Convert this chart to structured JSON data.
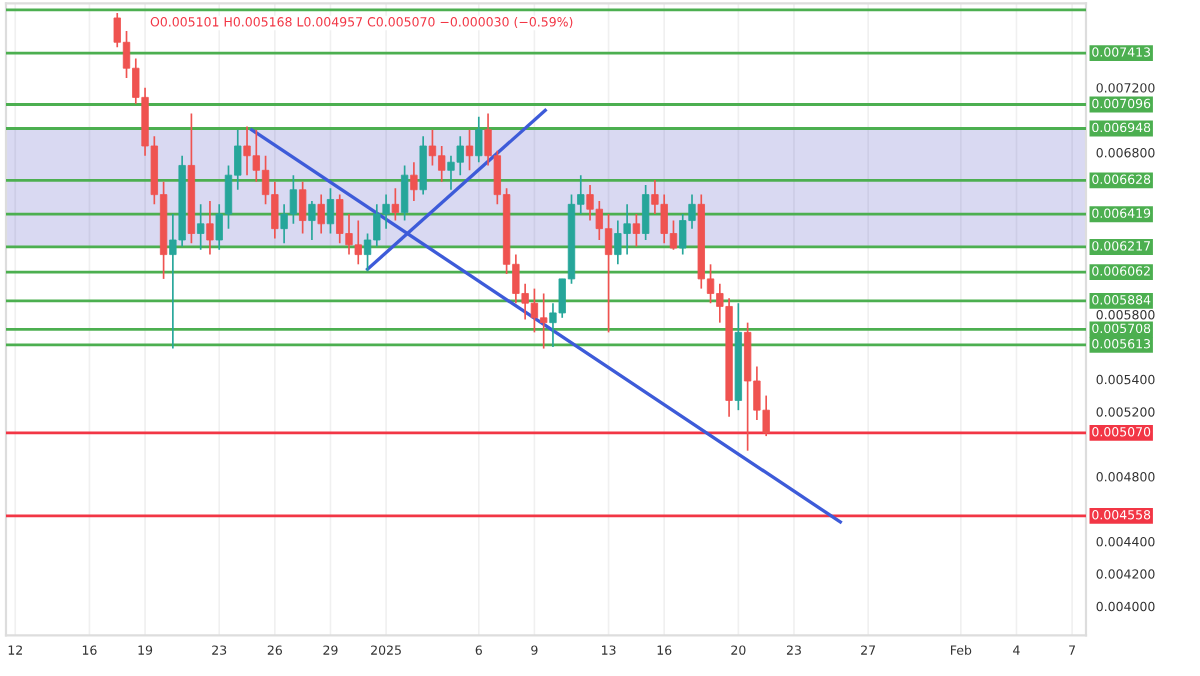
{
  "chart_data": {
    "type": "candlestick",
    "annotations": [
      "O0.005101 H0.005168 L0.004957 C0.005070 −0.000030 (−0.59%)"
    ],
    "x": [
      "2024-12-17T12:00",
      "2024-12-18T00:00",
      "2024-12-18T12:00",
      "2024-12-19T00:00",
      "2024-12-19T12:00",
      "2024-12-20T00:00",
      "2024-12-20T12:00",
      "2024-12-21T00:00",
      "2024-12-21T12:00",
      "2024-12-22T00:00",
      "2024-12-22T12:00",
      "2024-12-23T00:00",
      "2024-12-23T12:00",
      "2024-12-24T00:00",
      "2024-12-24T12:00",
      "2024-12-25T00:00",
      "2024-12-25T12:00",
      "2024-12-26T00:00",
      "2024-12-26T12:00",
      "2024-12-27T00:00",
      "2024-12-27T12:00",
      "2024-12-28T00:00",
      "2024-12-28T12:00",
      "2024-12-29T00:00",
      "2024-12-29T12:00",
      "2024-12-30T00:00",
      "2024-12-30T12:00",
      "2024-12-31T00:00",
      "2024-12-31T12:00",
      "2025-01-01T00:00",
      "2025-01-01T12:00",
      "2025-01-02T00:00",
      "2025-01-02T12:00",
      "2025-01-03T00:00",
      "2025-01-03T12:00",
      "2025-01-04T00:00",
      "2025-01-04T12:00",
      "2025-01-05T00:00",
      "2025-01-05T12:00",
      "2025-01-06T00:00",
      "2025-01-06T12:00",
      "2025-01-07T00:00",
      "2025-01-07T12:00",
      "2025-01-08T00:00",
      "2025-01-08T12:00",
      "2025-01-09T00:00",
      "2025-01-09T12:00",
      "2025-01-10T00:00",
      "2025-01-10T12:00",
      "2025-01-11T00:00",
      "2025-01-11T12:00",
      "2025-01-12T00:00",
      "2025-01-12T12:00",
      "2025-01-13T00:00",
      "2025-01-13T12:00",
      "2025-01-14T00:00",
      "2025-01-14T12:00",
      "2025-01-15T00:00",
      "2025-01-15T12:00",
      "2025-01-16T00:00",
      "2025-01-16T12:00",
      "2025-01-17T00:00",
      "2025-01-17T12:00",
      "2025-01-18T00:00",
      "2025-01-18T12:00",
      "2025-01-19T00:00",
      "2025-01-19T12:00",
      "2025-01-20T00:00",
      "2025-01-20T12:00",
      "2025-01-21T00:00",
      "2025-01-21T12:00"
    ],
    "ohlc": [
      [
        0.00763,
        0.00766,
        0.00745,
        0.00748
      ],
      [
        0.00748,
        0.00755,
        0.00726,
        0.00732
      ],
      [
        0.00732,
        0.00738,
        0.0071,
        0.00714
      ],
      [
        0.00714,
        0.0072,
        0.00678,
        0.00684
      ],
      [
        0.00684,
        0.0069,
        0.00648,
        0.00654
      ],
      [
        0.00654,
        0.00662,
        0.00602,
        0.00617
      ],
      [
        0.00617,
        0.00642,
        0.00559,
        0.00626
      ],
      [
        0.00626,
        0.00678,
        0.00622,
        0.00672
      ],
      [
        0.00672,
        0.00704,
        0.00624,
        0.0063
      ],
      [
        0.0063,
        0.00648,
        0.0062,
        0.00636
      ],
      [
        0.00636,
        0.0065,
        0.00617,
        0.00626
      ],
      [
        0.00626,
        0.00648,
        0.0062,
        0.00642
      ],
      [
        0.00642,
        0.00672,
        0.00633,
        0.00666
      ],
      [
        0.00666,
        0.00694,
        0.00657,
        0.00684
      ],
      [
        0.00684,
        0.00696,
        0.00666,
        0.00678
      ],
      [
        0.00678,
        0.00694,
        0.00662,
        0.00669
      ],
      [
        0.00669,
        0.00678,
        0.00648,
        0.00654
      ],
      [
        0.00654,
        0.00662,
        0.00627,
        0.00633
      ],
      [
        0.00633,
        0.00648,
        0.00624,
        0.00642
      ],
      [
        0.00642,
        0.00666,
        0.00636,
        0.00657
      ],
      [
        0.00657,
        0.00662,
        0.0063,
        0.00638
      ],
      [
        0.00638,
        0.0065,
        0.00626,
        0.00648
      ],
      [
        0.00648,
        0.00654,
        0.0063,
        0.00636
      ],
      [
        0.00636,
        0.00658,
        0.0063,
        0.00651
      ],
      [
        0.00651,
        0.00654,
        0.00624,
        0.0063
      ],
      [
        0.0063,
        0.00642,
        0.00617,
        0.00623
      ],
      [
        0.00623,
        0.00638,
        0.00611,
        0.00617
      ],
      [
        0.00617,
        0.0063,
        0.00607,
        0.00626
      ],
      [
        0.00626,
        0.00648,
        0.00622,
        0.00642
      ],
      [
        0.00642,
        0.00654,
        0.00633,
        0.00648
      ],
      [
        0.00648,
        0.00658,
        0.00638,
        0.00643
      ],
      [
        0.00643,
        0.00672,
        0.00638,
        0.00666
      ],
      [
        0.00666,
        0.00674,
        0.0065,
        0.00657
      ],
      [
        0.00657,
        0.0069,
        0.00654,
        0.00684
      ],
      [
        0.00684,
        0.00694,
        0.00672,
        0.00678
      ],
      [
        0.00678,
        0.00684,
        0.00662,
        0.00669
      ],
      [
        0.00669,
        0.00678,
        0.00657,
        0.00674
      ],
      [
        0.00674,
        0.0069,
        0.00666,
        0.00684
      ],
      [
        0.00684,
        0.00694,
        0.00669,
        0.00678
      ],
      [
        0.00678,
        0.00702,
        0.00674,
        0.00694
      ],
      [
        0.00694,
        0.00704,
        0.00672,
        0.00678
      ],
      [
        0.00678,
        0.00681,
        0.00648,
        0.00654
      ],
      [
        0.00654,
        0.00658,
        0.00605,
        0.00611
      ],
      [
        0.00611,
        0.00617,
        0.00587,
        0.00593
      ],
      [
        0.00593,
        0.00599,
        0.00577,
        0.00587
      ],
      [
        0.00587,
        0.00596,
        0.00569,
        0.00578
      ],
      [
        0.00578,
        0.00593,
        0.00559,
        0.00575
      ],
      [
        0.00575,
        0.00587,
        0.0056,
        0.00581
      ],
      [
        0.00581,
        0.00602,
        0.00578,
        0.00602
      ],
      [
        0.00602,
        0.00654,
        0.00599,
        0.00648
      ],
      [
        0.00648,
        0.00666,
        0.00642,
        0.00654
      ],
      [
        0.00654,
        0.0066,
        0.00638,
        0.00645
      ],
      [
        0.00645,
        0.0065,
        0.00626,
        0.00633
      ],
      [
        0.00633,
        0.00642,
        0.00569,
        0.00617
      ],
      [
        0.00617,
        0.00638,
        0.00611,
        0.0063
      ],
      [
        0.0063,
        0.00648,
        0.00617,
        0.00636
      ],
      [
        0.00636,
        0.00642,
        0.00622,
        0.0063
      ],
      [
        0.0063,
        0.0066,
        0.00626,
        0.00654
      ],
      [
        0.00654,
        0.00663,
        0.00642,
        0.00648
      ],
      [
        0.00648,
        0.00654,
        0.00624,
        0.0063
      ],
      [
        0.0063,
        0.00638,
        0.0062,
        0.00621
      ],
      [
        0.00621,
        0.00642,
        0.00617,
        0.00638
      ],
      [
        0.00638,
        0.00654,
        0.00633,
        0.00648
      ],
      [
        0.00648,
        0.00654,
        0.00596,
        0.00602
      ],
      [
        0.00602,
        0.00611,
        0.00587,
        0.00593
      ],
      [
        0.00593,
        0.00599,
        0.00575,
        0.00585
      ],
      [
        0.00585,
        0.0059,
        0.00517,
        0.00527
      ],
      [
        0.00527,
        0.00587,
        0.00521,
        0.00569
      ],
      [
        0.00569,
        0.00575,
        0.00496,
        0.00539
      ],
      [
        0.00539,
        0.00548,
        0.00515,
        0.00521
      ],
      [
        0.00521,
        0.0053,
        0.00505,
        0.00507
      ]
    ],
    "colors": [
      "#ef5350",
      "#ef5350",
      "#ef5350",
      "#ef5350",
      "#ef5350",
      "#ef5350",
      "#26a69a",
      "#26a69a",
      "#ef5350",
      "#26a69a",
      "#ef5350",
      "#26a69a",
      "#26a69a",
      "#26a69a",
      "#ef5350",
      "#ef5350",
      "#ef5350",
      "#ef5350",
      "#26a69a",
      "#26a69a",
      "#ef5350",
      "#26a69a",
      "#ef5350",
      "#26a69a",
      "#ef5350",
      "#ef5350",
      "#ef5350",
      "#26a69a",
      "#26a69a",
      "#26a69a",
      "#ef5350",
      "#26a69a",
      "#ef5350",
      "#26a69a",
      "#ef5350",
      "#ef5350",
      "#26a69a",
      "#26a69a",
      "#ef5350",
      "#26a69a",
      "#ef5350",
      "#ef5350",
      "#ef5350",
      "#ef5350",
      "#ef5350",
      "#ef5350",
      "#ef5350",
      "#26a69a",
      "#26a69a",
      "#26a69a",
      "#26a69a",
      "#ef5350",
      "#ef5350",
      "#ef5350",
      "#26a69a",
      "#26a69a",
      "#ef5350",
      "#26a69a",
      "#ef5350",
      "#ef5350",
      "#ef5350",
      "#26a69a",
      "#26a69a",
      "#ef5350",
      "#ef5350",
      "#ef5350",
      "#ef5350",
      "#26a69a",
      "#ef5350",
      "#ef5350",
      "#ef5350"
    ],
    "series": [
      {
        "type": "line",
        "x": [
          "2024-12-24T18:00",
          "2025-01-25T12:00"
        ],
        "values": [
          0.00694,
          0.00452
        ],
        "color": "#3d5bd9"
      },
      {
        "type": "line",
        "x": [
          "2024-12-31T00:00",
          "2025-01-09T14:00"
        ],
        "values": [
          0.00608,
          0.00706
        ],
        "color": "#3d5bd9"
      }
    ],
    "bands": [
      {
        "axis": "y",
        "from": 0.006217,
        "to": 0.006948,
        "color": "#3f3fbf"
      }
    ],
    "ref_lines": [
      {
        "axis": "y",
        "value": 0.00768,
        "label": null,
        "color": "#4caf50"
      },
      {
        "axis": "y",
        "value": 0.007413,
        "label": "0.007413",
        "color": "#4caf50"
      },
      {
        "axis": "y",
        "value": 0.007096,
        "label": "0.007096",
        "color": "#4caf50"
      },
      {
        "axis": "y",
        "value": 0.006948,
        "label": "0.006948",
        "color": "#4caf50"
      },
      {
        "axis": "y",
        "value": 0.006628,
        "label": "0.006628",
        "color": "#4caf50"
      },
      {
        "axis": "y",
        "value": 0.006419,
        "label": "0.006419",
        "color": "#4caf50"
      },
      {
        "axis": "y",
        "value": 0.006217,
        "label": "0.006217",
        "color": "#4caf50"
      },
      {
        "axis": "y",
        "value": 0.006062,
        "label": "0.006062",
        "color": "#4caf50"
      },
      {
        "axis": "y",
        "value": 0.005884,
        "label": "0.005884",
        "color": "#4caf50"
      },
      {
        "axis": "y",
        "value": 0.005708,
        "label": "0.005708",
        "color": "#4caf50"
      },
      {
        "axis": "y",
        "value": 0.005613,
        "label": "0.005613",
        "color": "#4caf50"
      },
      {
        "axis": "y",
        "value": 0.00507,
        "label": "0.005070",
        "color": "#f23645"
      },
      {
        "axis": "y",
        "value": 0.004558,
        "label": "0.004558",
        "color": "#f23645"
      }
    ],
    "xlim": [
      "2024-12-11T12:00",
      "2025-02-07T18:00"
    ],
    "xticks": [
      {
        "value": "2024-12-12",
        "label": "12"
      },
      {
        "value": "2024-12-16",
        "label": "16"
      },
      {
        "value": "2024-12-19",
        "label": "19"
      },
      {
        "value": "2024-12-23",
        "label": "23"
      },
      {
        "value": "2024-12-26",
        "label": "26"
      },
      {
        "value": "2024-12-29",
        "label": "29"
      },
      {
        "value": "2025-01-01",
        "label": "2025"
      },
      {
        "value": "2025-01-06",
        "label": "6"
      },
      {
        "value": "2025-01-09",
        "label": "9"
      },
      {
        "value": "2025-01-13",
        "label": "13"
      },
      {
        "value": "2025-01-16",
        "label": "16"
      },
      {
        "value": "2025-01-20",
        "label": "20"
      },
      {
        "value": "2025-01-23",
        "label": "23"
      },
      {
        "value": "2025-01-27",
        "label": "27"
      },
      {
        "value": "2025-02-01",
        "label": "Feb"
      },
      {
        "value": "2025-02-04",
        "label": "4"
      },
      {
        "value": "2025-02-07",
        "label": "7"
      }
    ],
    "ylim": [
      0.00382,
      0.00772
    ],
    "yticks": [
      {
        "value": 0.004,
        "label": "0.004000"
      },
      {
        "value": 0.0042,
        "label": "0.004200"
      },
      {
        "value": 0.0044,
        "label": "0.004400"
      },
      {
        "value": 0.0048,
        "label": "0.004800"
      },
      {
        "value": 0.0052,
        "label": "0.005200"
      },
      {
        "value": 0.0054,
        "label": "0.005400"
      },
      {
        "value": 0.0058,
        "label": "0.005800"
      },
      {
        "value": 0.0068,
        "label": "0.006800"
      },
      {
        "value": 0.0072,
        "label": "0.007200"
      }
    ],
    "grid": "x"
  }
}
